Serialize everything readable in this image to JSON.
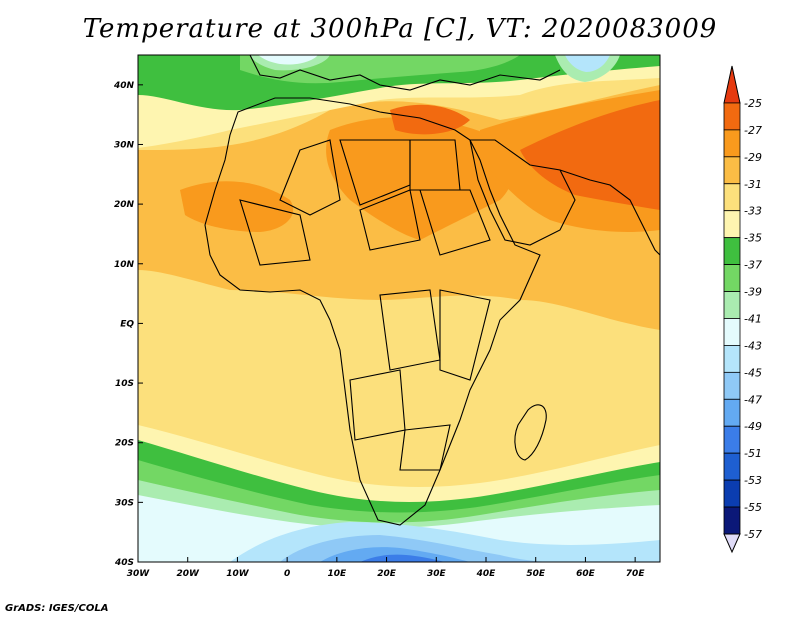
{
  "title": "Temperature at 300hPa [C], VT: 2020083009",
  "credit": "GrADS: IGES/COLA",
  "map": {
    "lon_range": [
      -30,
      75
    ],
    "lat_range": [
      -40,
      45
    ],
    "lat_ticks": [
      {
        "value": 40,
        "label": "40N"
      },
      {
        "value": 30,
        "label": "30N"
      },
      {
        "value": 20,
        "label": "20N"
      },
      {
        "value": 10,
        "label": "10N"
      },
      {
        "value": 0,
        "label": "EQ"
      },
      {
        "value": -10,
        "label": "10S"
      },
      {
        "value": -20,
        "label": "20S"
      },
      {
        "value": -30,
        "label": "30S"
      },
      {
        "value": -40,
        "label": "40S"
      }
    ],
    "lon_ticks": [
      {
        "value": -30,
        "label": "30W"
      },
      {
        "value": -20,
        "label": "20W"
      },
      {
        "value": -10,
        "label": "10W"
      },
      {
        "value": 0,
        "label": "0"
      },
      {
        "value": 10,
        "label": "10E"
      },
      {
        "value": 20,
        "label": "20E"
      },
      {
        "value": 30,
        "label": "30E"
      },
      {
        "value": 40,
        "label": "40E"
      },
      {
        "value": 50,
        "label": "50E"
      },
      {
        "value": 60,
        "label": "60E"
      },
      {
        "value": 70,
        "label": "70E"
      }
    ]
  },
  "colorbar": {
    "labels": [
      "-25",
      "-27",
      "-29",
      "-31",
      "-33",
      "-35",
      "-37",
      "-39",
      "-41",
      "-43",
      "-45",
      "-47",
      "-49",
      "-51",
      "-53",
      "-55",
      "-57"
    ],
    "colors": [
      "#e63a10",
      "#f26a10",
      "#f99a1d",
      "#fbbd45",
      "#fce07c",
      "#fef5b0",
      "#3fbf3f",
      "#73d764",
      "#aaecb0",
      "#e4fbfd",
      "#b4e5fb",
      "#8fc9f6",
      "#63aaf2",
      "#3b7de8",
      "#1e5fd1",
      "#0b3db0",
      "#0b1878",
      "#e0dcf8"
    ]
  }
}
